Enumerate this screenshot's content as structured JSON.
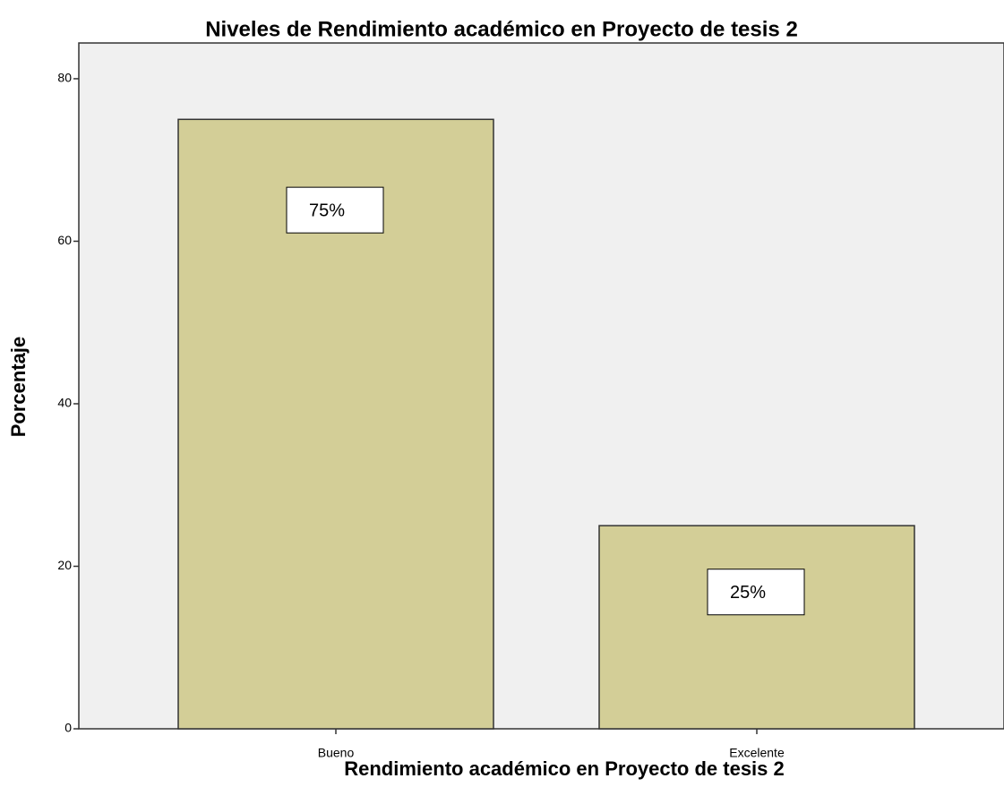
{
  "chart_data": {
    "type": "bar",
    "title": "Niveles de Rendimiento académico en Proyecto de tesis 2",
    "x_label": "Rendimiento académico en Proyecto de tesis 2",
    "y_label": "Porcentaje",
    "categories": [
      "Bueno",
      "Excelente"
    ],
    "values": [
      75,
      25
    ],
    "value_labels": [
      "75%",
      "25%"
    ],
    "color": "#d3ce97",
    "ylim": [
      0,
      84.4
    ],
    "yticks": [
      0,
      20,
      40,
      60,
      80
    ],
    "grid": false
  }
}
